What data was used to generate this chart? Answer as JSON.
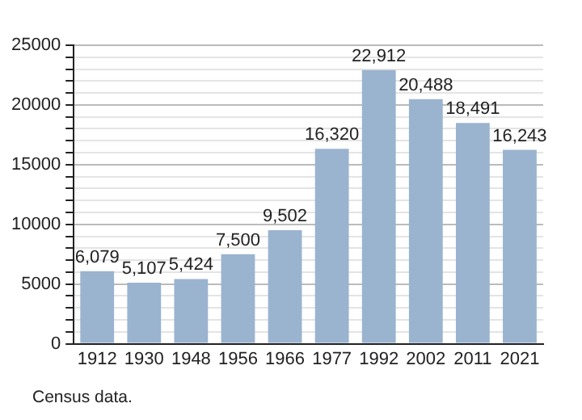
{
  "chart_data": {
    "type": "bar",
    "categories": [
      "1912",
      "1930",
      "1948",
      "1956",
      "1966",
      "1977",
      "1992",
      "2002",
      "2011",
      "2021"
    ],
    "values": [
      6079,
      5107,
      5424,
      7500,
      9502,
      16320,
      22912,
      20488,
      18491,
      16243
    ],
    "value_labels": [
      "6,079",
      "5,107",
      "5,424",
      "7,500",
      "9,502",
      "16,320",
      "22,912",
      "20,488",
      "18,491",
      "16,243"
    ],
    "color": "#9ab3cf",
    "ylim": [
      0,
      25000
    ],
    "yticks": [
      0,
      {
        "value": 1000,
        "label": null
      },
      {
        "value": 2000,
        "label": null
      },
      {
        "value": 3000,
        "label": null
      },
      {
        "value": 4000,
        "label": null
      },
      5000,
      {
        "value": 6000,
        "label": null
      },
      {
        "value": 7000,
        "label": null
      },
      {
        "value": 8000,
        "label": null
      },
      {
        "value": 9000,
        "label": null
      },
      10000,
      {
        "value": 11000,
        "label": null
      },
      {
        "value": 12000,
        "label": null
      },
      {
        "value": 13000,
        "label": null
      },
      {
        "value": 14000,
        "label": null
      },
      15000,
      {
        "value": 16000,
        "label": null
      },
      {
        "value": 17000,
        "label": null
      },
      {
        "value": 18000,
        "label": null
      },
      {
        "value": 19000,
        "label": null
      },
      20000,
      {
        "value": 21000,
        "label": null
      },
      {
        "value": 22000,
        "label": null
      },
      {
        "value": 23000,
        "label": null
      },
      {
        "value": 24000,
        "label": null
      },
      25000
    ],
    "grid": "y",
    "legend": false,
    "annotations": [
      "Census data."
    ]
  }
}
